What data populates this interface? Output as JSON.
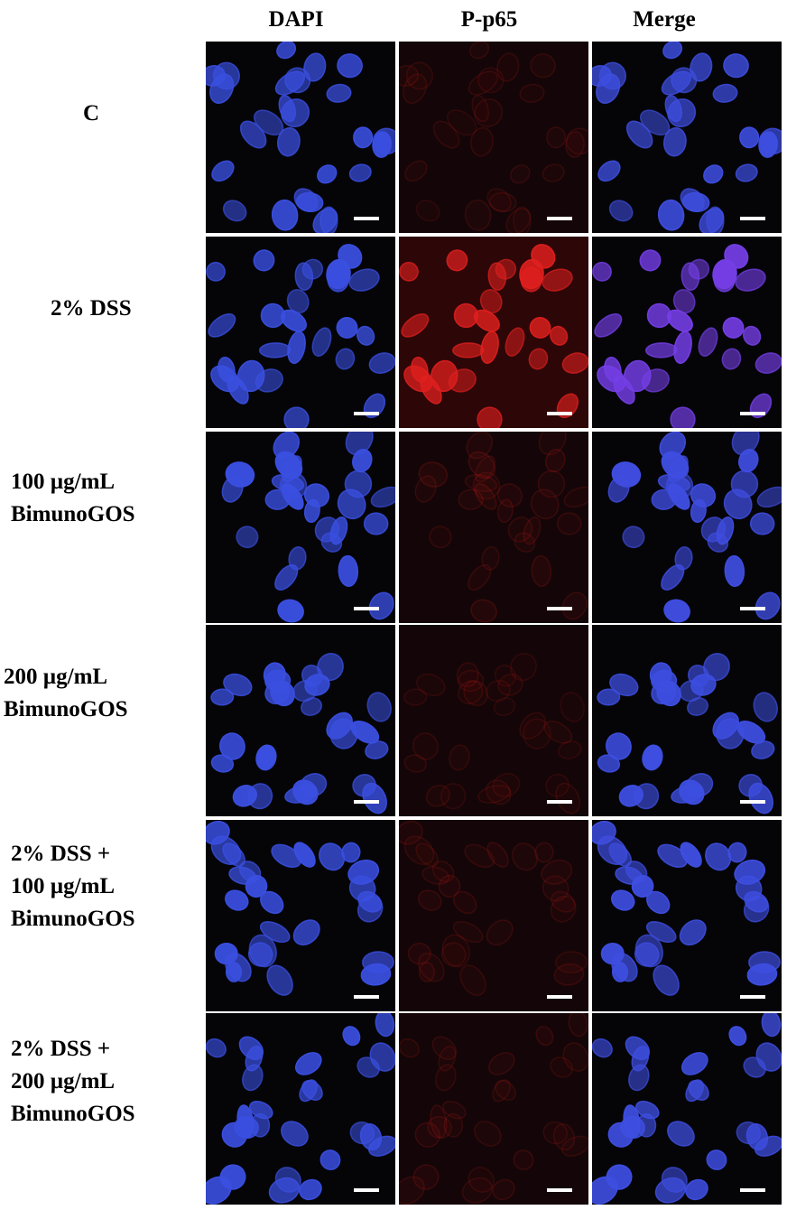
{
  "columns": [
    "DAPI",
    "P-p65",
    "Merge"
  ],
  "rows": [
    {
      "label": "C",
      "red_intensity": 0.06
    },
    {
      "label": "2% DSS",
      "red_intensity": 0.9
    },
    {
      "label": "100 µg/mL\nBimunoGOS",
      "red_intensity": 0.08
    },
    {
      "label": "200 µg/mL\nBimunoGOS",
      "red_intensity": 0.05
    },
    {
      "label": "2%  DSS +\n100 µg/mL\nBimunoGOS",
      "red_intensity": 0.07
    },
    {
      "label": "2%  DSS +\n200 µg/mL\nBimunoGOS",
      "red_intensity": 0.07
    }
  ],
  "colors": {
    "dapi": "#3a4fe0",
    "p65": "#e0201e",
    "merge": "#7a3ce6",
    "scalebar": "#ffffff"
  }
}
